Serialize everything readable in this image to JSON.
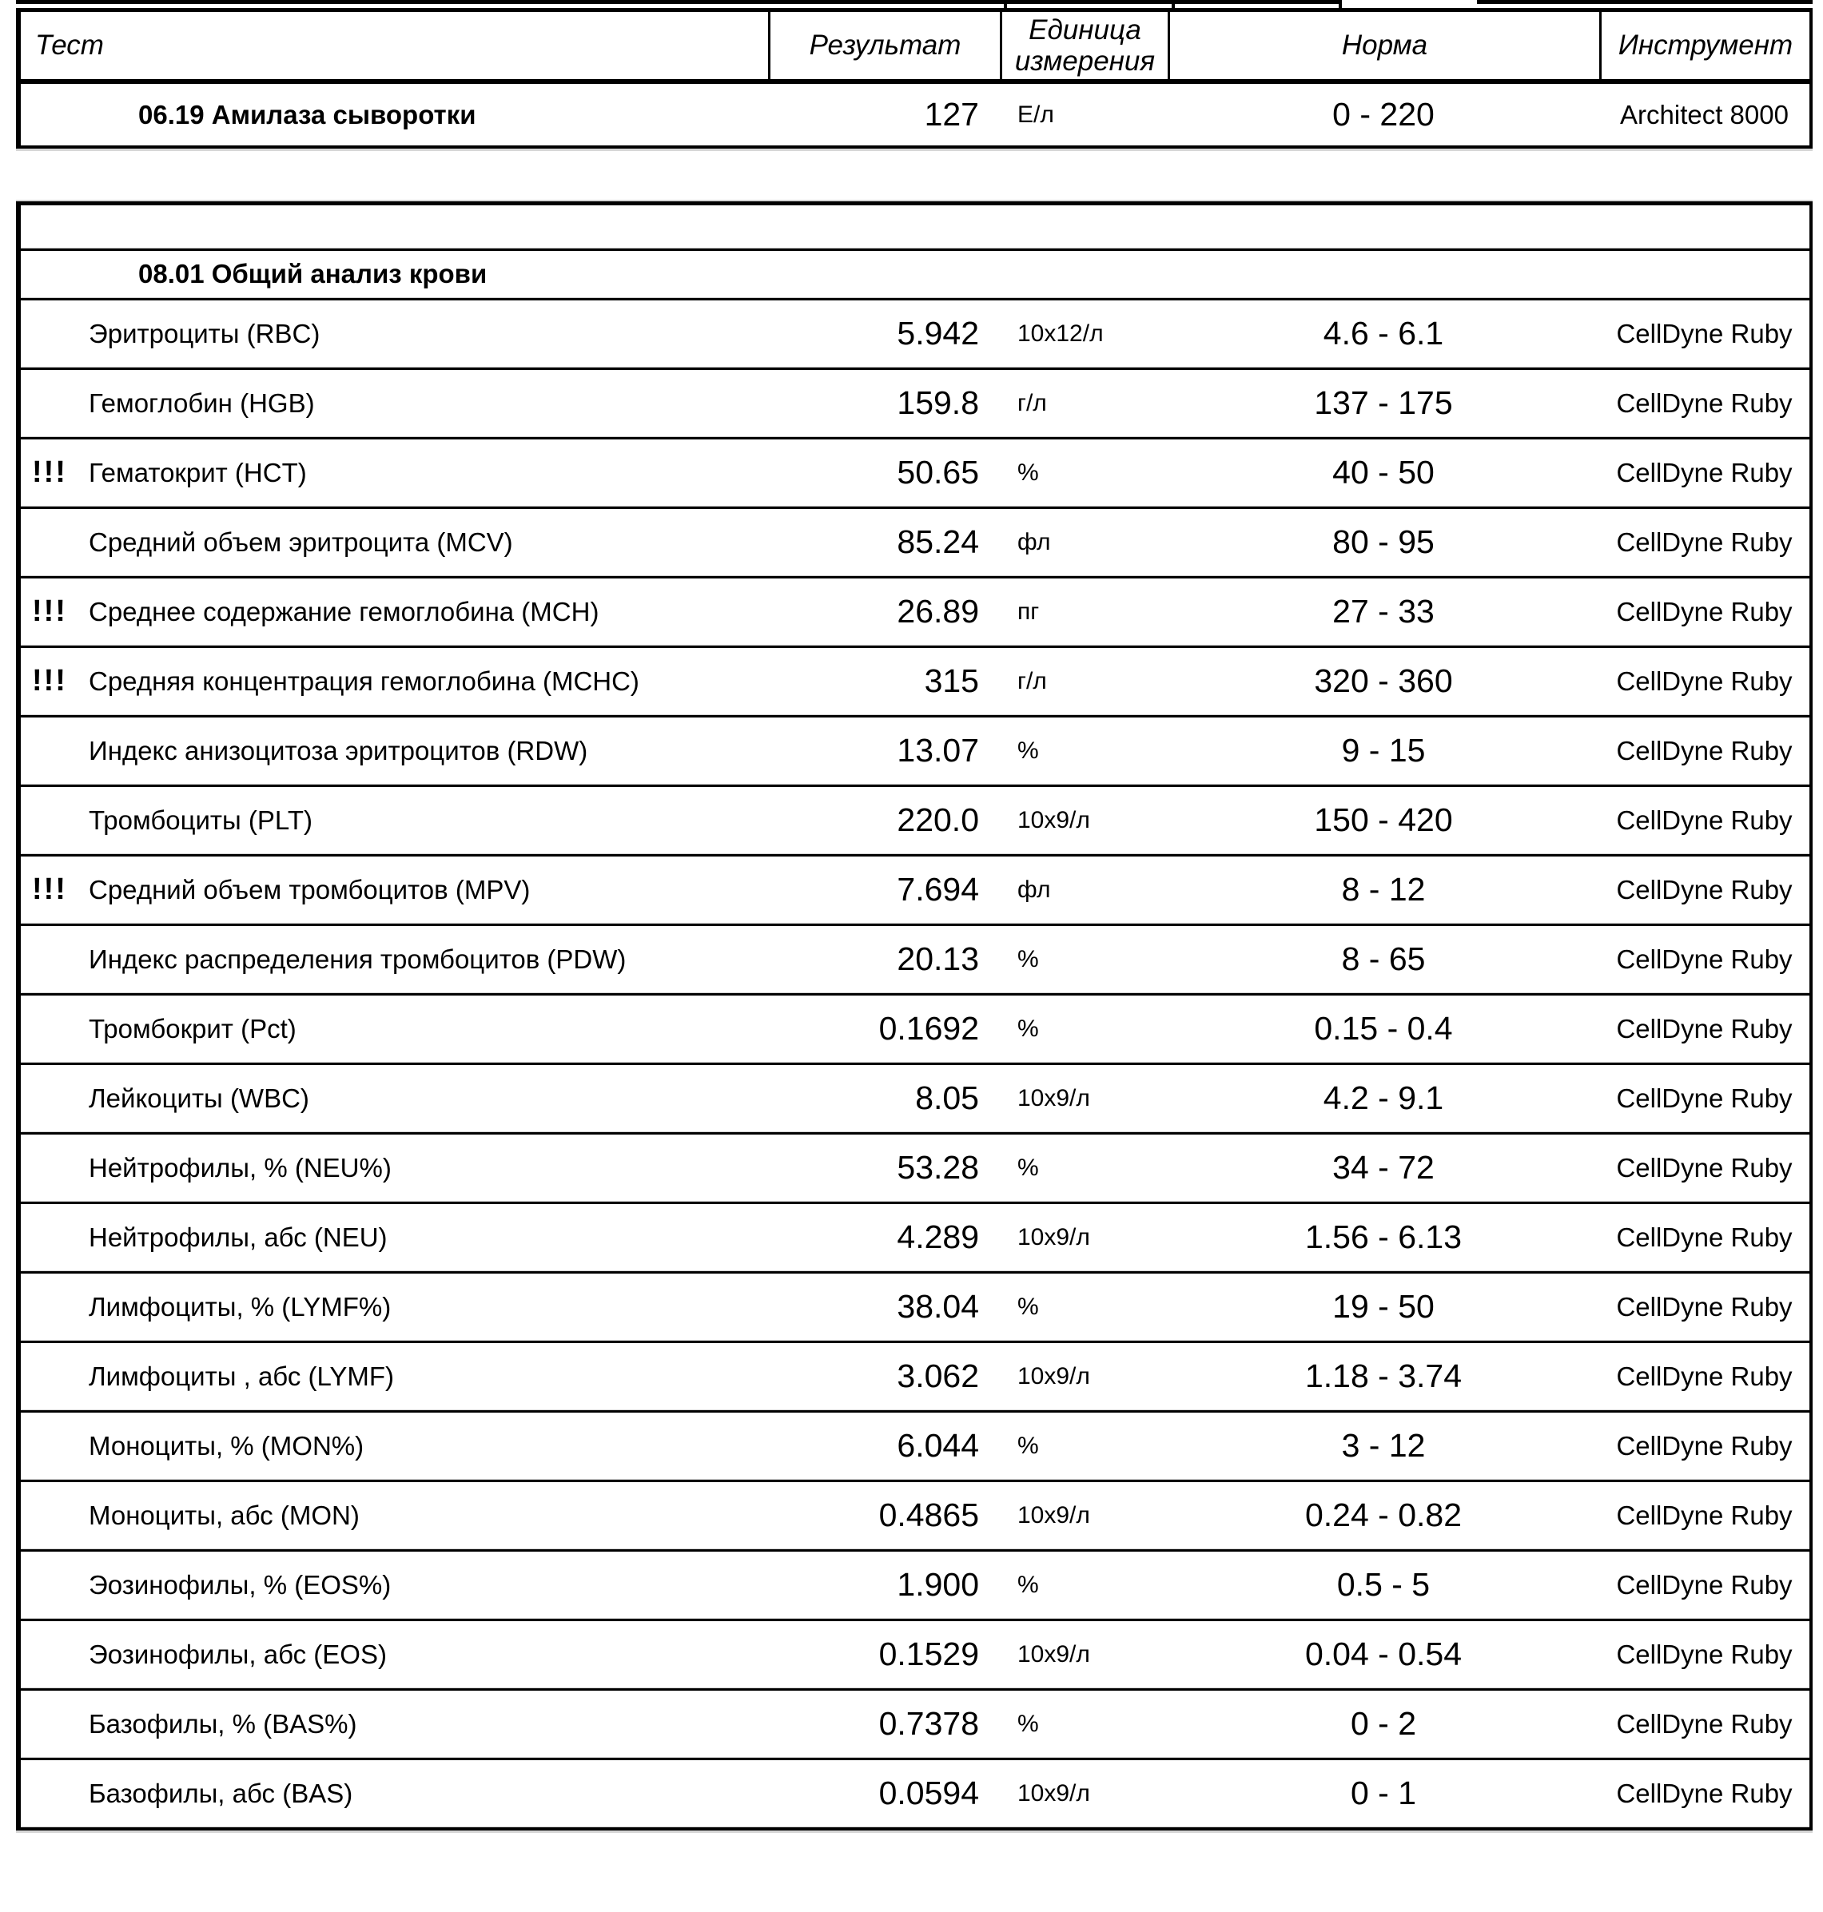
{
  "report": {
    "header": {
      "col_test": "Тест",
      "col_result": "Результат",
      "col_unit": "Единица измерения",
      "col_norm": "Норма",
      "col_instrument": "Инструмент"
    },
    "amylase_section": {
      "title": "06.19 Амилаза сыворотки",
      "flag": "",
      "result": "127",
      "unit": "Е/л",
      "norm": "0 - 220",
      "instrument": "Architect 8000"
    },
    "cbc_section": {
      "title": "08.01 Общий анализ крови",
      "rows": [
        {
          "flag": "",
          "name": "Эритроциты (RBC)",
          "result": "5.942",
          "unit": "10х12/л",
          "norm": "4.6 - 6.1",
          "instrument": "CellDyne Ruby"
        },
        {
          "flag": "",
          "name": "Гемоглобин (HGB)",
          "result": "159.8",
          "unit": "г/л",
          "norm": "137 - 175",
          "instrument": "CellDyne Ruby"
        },
        {
          "flag": "!!!",
          "name": "Гематокрит (HCT)",
          "result": "50.65",
          "unit": "%",
          "norm": "40 - 50",
          "instrument": "CellDyne Ruby"
        },
        {
          "flag": "",
          "name": "Средний объем эритроцита (MCV)",
          "result": "85.24",
          "unit": "фл",
          "norm": "80 - 95",
          "instrument": "CellDyne Ruby"
        },
        {
          "flag": "!!!",
          "name": "Среднее содержание гемоглобина (MCH)",
          "result": "26.89",
          "unit": "пг",
          "norm": "27 - 33",
          "instrument": "CellDyne Ruby"
        },
        {
          "flag": "!!!",
          "name": "Средняя концентрация гемоглобина (MCHC)",
          "result": "315",
          "unit": "г/л",
          "norm": "320 - 360",
          "instrument": "CellDyne Ruby"
        },
        {
          "flag": "",
          "name": "Индекс анизоцитоза эритроцитов (RDW)",
          "result": "13.07",
          "unit": "%",
          "norm": "9 - 15",
          "instrument": "CellDyne Ruby"
        },
        {
          "flag": "",
          "name": "Тромбоциты (PLT)",
          "result": "220.0",
          "unit": "10х9/л",
          "norm": "150 - 420",
          "instrument": "CellDyne Ruby"
        },
        {
          "flag": "!!!",
          "name": "Средний объем тромбоцитов (MPV)",
          "result": "7.694",
          "unit": "фл",
          "norm": "8 - 12",
          "instrument": "CellDyne Ruby"
        },
        {
          "flag": "",
          "name": "Индекс распределения тромбоцитов (PDW)",
          "result": "20.13",
          "unit": "%",
          "norm": "8 - 65",
          "instrument": "CellDyne Ruby"
        },
        {
          "flag": "",
          "name": "Тромбокрит (Pct)",
          "result": "0.1692",
          "unit": "%",
          "norm": "0.15 - 0.4",
          "instrument": "CellDyne Ruby"
        },
        {
          "flag": "",
          "name": "Лейкоциты (WBC)",
          "result": "8.05",
          "unit": "10х9/л",
          "norm": "4.2 - 9.1",
          "instrument": "CellDyne Ruby"
        },
        {
          "flag": "",
          "name": "Нейтрофилы, % (NEU%)",
          "result": "53.28",
          "unit": "%",
          "norm": "34 - 72",
          "instrument": "CellDyne Ruby"
        },
        {
          "flag": "",
          "name": "Нейтрофилы, абс (NEU)",
          "result": "4.289",
          "unit": "10х9/л",
          "norm": "1.56 - 6.13",
          "instrument": "CellDyne Ruby"
        },
        {
          "flag": "",
          "name": "Лимфоциты, % (LYMF%)",
          "result": "38.04",
          "unit": "%",
          "norm": "19 - 50",
          "instrument": "CellDyne Ruby"
        },
        {
          "flag": "",
          "name": "Лимфоциты , абс (LYMF)",
          "result": "3.062",
          "unit": "10х9/л",
          "norm": "1.18 - 3.74",
          "instrument": "CellDyne Ruby"
        },
        {
          "flag": "",
          "name": "Моноциты, % (MON%)",
          "result": "6.044",
          "unit": "%",
          "norm": "3 - 12",
          "instrument": "CellDyne Ruby"
        },
        {
          "flag": "",
          "name": "Моноциты, абс (MON)",
          "result": "0.4865",
          "unit": "10х9/л",
          "norm": "0.24 - 0.82",
          "instrument": "CellDyne Ruby"
        },
        {
          "flag": "",
          "name": "Эозинофилы, % (EOS%)",
          "result": "1.900",
          "unit": "%",
          "norm": "0.5 - 5",
          "instrument": "CellDyne Ruby"
        },
        {
          "flag": "",
          "name": "Эозинофилы, абс (EOS)",
          "result": "0.1529",
          "unit": "10х9/л",
          "norm": "0.04 - 0.54",
          "instrument": "CellDyne Ruby"
        },
        {
          "flag": "",
          "name": "Базофилы, % (BAS%)",
          "result": "0.7378",
          "unit": "%",
          "norm": "0 - 2",
          "instrument": "CellDyne Ruby"
        },
        {
          "flag": "",
          "name": "Базофилы, абс (BAS)",
          "result": "0.0594",
          "unit": "10х9/л",
          "norm": "0 - 1",
          "instrument": "CellDyne Ruby"
        }
      ]
    }
  }
}
